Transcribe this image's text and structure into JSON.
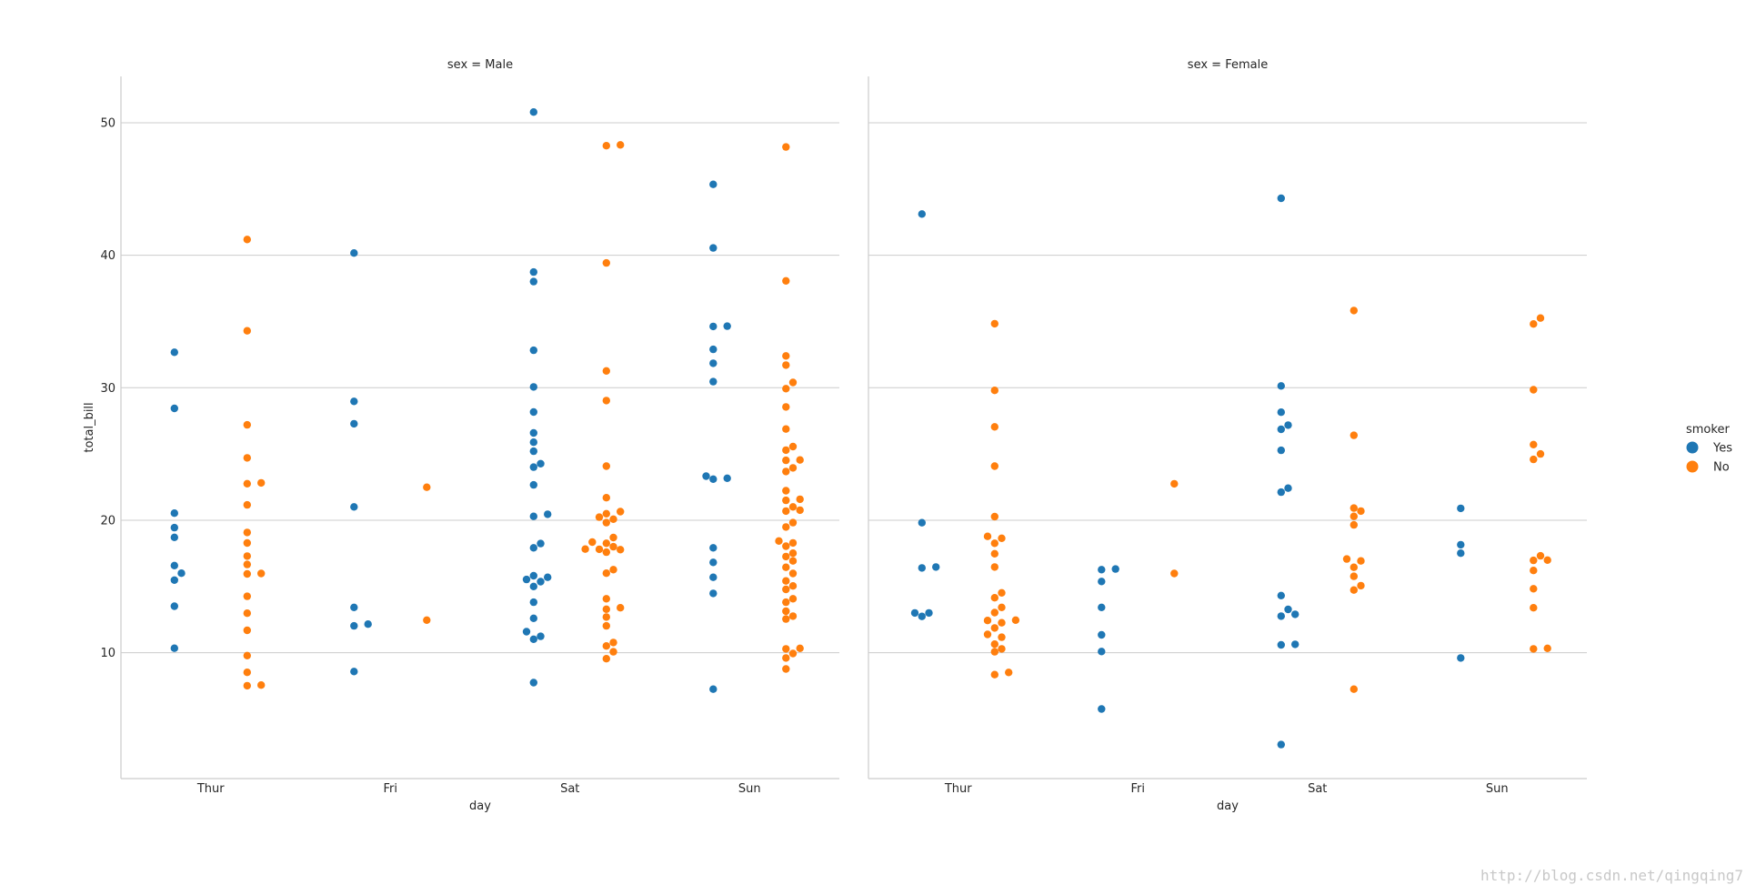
{
  "colors": {
    "yes": "#1f77b4",
    "no": "#ff7f0e",
    "grid": "#cccccc",
    "axis": "#cccccc",
    "text": "#262626"
  },
  "watermark": "http://blog.csdn.net/qingqing7",
  "chart_data": {
    "type": "scatter",
    "subtype": "swarm",
    "ylabel": "total_bill",
    "xlabel": "day",
    "categories": [
      "Thur",
      "Fri",
      "Sat",
      "Sun"
    ],
    "yticks": [
      10,
      20,
      30,
      40,
      50
    ],
    "ylim": [
      0.5,
      53.5
    ],
    "grid": true,
    "legend": {
      "title": "smoker",
      "placement": "right",
      "entries": [
        {
          "label": "Yes",
          "key": "yes"
        },
        {
          "label": "No",
          "key": "no"
        }
      ]
    },
    "panels": [
      {
        "title": "sex = Male",
        "series": [
          {
            "name": "Yes",
            "key": "yes",
            "values": {
              "Thur": [
                32.68,
                28.44,
                20.53,
                19.44,
                18.71,
                16.58,
                16.0,
                15.48,
                13.51,
                10.34
              ],
              "Fri": [
                40.17,
                28.97,
                27.28,
                21.01,
                13.42,
                12.16,
                12.03,
                8.58
              ],
              "Sat": [
                50.81,
                38.73,
                38.01,
                32.83,
                30.06,
                28.17,
                26.59,
                25.89,
                25.21,
                24.27,
                24.01,
                22.67,
                20.45,
                20.29,
                18.24,
                17.92,
                15.81,
                15.36,
                15.0,
                15.69,
                15.53,
                13.81,
                12.6,
                11.59,
                11.24,
                11.02,
                7.74
              ],
              "Sun": [
                45.35,
                40.55,
                34.63,
                34.65,
                32.9,
                31.85,
                30.46,
                23.17,
                23.1,
                23.33,
                17.92,
                16.82,
                15.69,
                14.48,
                7.25
              ]
            }
          },
          {
            "name": "No",
            "key": "no",
            "values": {
              "Thur": [
                41.19,
                34.3,
                27.2,
                24.71,
                22.82,
                22.76,
                21.16,
                19.08,
                18.28,
                17.29,
                16.66,
                15.98,
                15.95,
                14.26,
                12.98,
                11.69,
                9.78,
                8.52,
                7.51,
                7.56
              ],
              "Fri": [
                22.49,
                12.46
              ],
              "Sat": [
                48.33,
                48.27,
                39.42,
                31.27,
                29.03,
                24.08,
                21.7,
                20.65,
                20.49,
                20.23,
                20.08,
                19.82,
                18.69,
                18.35,
                18.26,
                18.0,
                17.81,
                17.78,
                17.82,
                17.59,
                16.27,
                16.0,
                14.07,
                13.39,
                13.28,
                12.69,
                12.03,
                10.77,
                10.51,
                10.07,
                9.55
              ],
              "Sun": [
                48.17,
                38.07,
                32.4,
                31.71,
                30.4,
                29.93,
                28.55,
                26.88,
                25.56,
                25.29,
                24.55,
                24.52,
                23.95,
                23.68,
                22.23,
                21.58,
                21.5,
                21.01,
                20.76,
                20.69,
                19.82,
                19.49,
                18.43,
                18.29,
                18.04,
                17.51,
                17.26,
                16.93,
                16.45,
                15.98,
                15.42,
                15.04,
                14.78,
                14.07,
                13.81,
                13.13,
                12.76,
                12.54,
                10.33,
                10.29,
                9.94,
                9.6,
                8.77
              ]
            }
          }
        ]
      },
      {
        "title": "sex = Female",
        "series": [
          {
            "name": "Yes",
            "key": "yes",
            "values": {
              "Thur": [
                43.11,
                19.81,
                16.47,
                16.4,
                13.0,
                12.74,
                13.0
              ],
              "Fri": [
                16.32,
                15.38,
                16.27,
                13.42,
                11.35,
                10.09,
                5.75
              ],
              "Sat": [
                44.3,
                30.14,
                28.15,
                27.18,
                26.86,
                25.28,
                22.42,
                22.12,
                14.31,
                12.9,
                12.76,
                13.27,
                10.59,
                10.63,
                3.07
              ],
              "Sun": [
                20.9,
                18.15,
                17.51,
                9.6
              ]
            }
          },
          {
            "name": "No",
            "key": "no",
            "values": {
              "Thur": [
                34.83,
                29.8,
                27.05,
                24.08,
                20.27,
                18.78,
                18.64,
                18.26,
                17.47,
                16.47,
                14.52,
                14.15,
                13.42,
                13.03,
                12.43,
                12.26,
                12.46,
                11.87,
                11.38,
                11.17,
                10.65,
                10.29,
                10.07,
                8.51,
                8.35
              ],
              "Fri": [
                22.75,
                15.98
              ],
              "Sat": [
                35.83,
                26.41,
                20.92,
                20.69,
                20.29,
                19.65,
                17.07,
                16.93,
                16.45,
                15.77,
                15.06,
                14.73,
                7.25
              ],
              "Sun": [
                35.26,
                34.81,
                29.85,
                25.71,
                25.0,
                24.59,
                17.31,
                16.99,
                16.97,
                16.21,
                14.83,
                13.39,
                10.33,
                10.29
              ]
            }
          }
        ]
      }
    ]
  }
}
